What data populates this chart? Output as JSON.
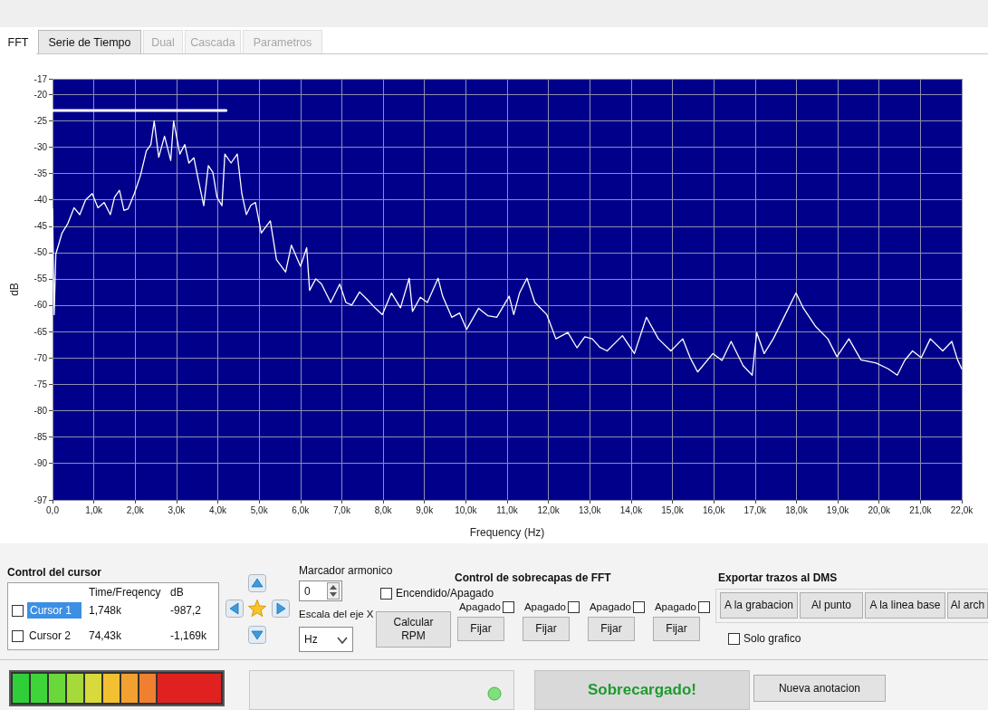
{
  "chart_data": [
    {
      "type": "other",
      "annotations": [
        "FFT",
        "Serie de Tiempo",
        "Dual",
        "Cascada",
        "Parametros"
      ]
    },
    {
      "type": "line",
      "xlabel": "Frequency (Hz)",
      "ylabel": "dB",
      "xlim": [
        0,
        22000
      ],
      "ylim": [
        -97,
        -17
      ],
      "xticks": [
        {
          "value": 0,
          "label": "0,0"
        },
        {
          "value": 1000,
          "label": "1,0k"
        },
        {
          "value": 2000,
          "label": "2,0k"
        },
        {
          "value": 3000,
          "label": "3,0k"
        },
        {
          "value": 4000,
          "label": "4,0k"
        },
        {
          "value": 5000,
          "label": "5,0k"
        },
        {
          "value": 6000,
          "label": "6,0k"
        },
        {
          "value": 7000,
          "label": "7,0k"
        },
        {
          "value": 8000,
          "label": "8,0k"
        },
        {
          "value": 9000,
          "label": "9,0k"
        },
        {
          "value": 10000,
          "label": "10,0k"
        },
        {
          "value": 11000,
          "label": "11,0k"
        },
        {
          "value": 12000,
          "label": "12,0k"
        },
        {
          "value": 13000,
          "label": "13,0k"
        },
        {
          "value": 14000,
          "label": "14,0k"
        },
        {
          "value": 15000,
          "label": "15,0k"
        },
        {
          "value": 16000,
          "label": "16,0k"
        },
        {
          "value": 17000,
          "label": "17,0k"
        },
        {
          "value": 18000,
          "label": "18,0k"
        },
        {
          "value": 19000,
          "label": "19,0k"
        },
        {
          "value": 20000,
          "label": "20,0k"
        },
        {
          "value": 21000,
          "label": "21,0k"
        },
        {
          "value": 22000,
          "label": "22,0k"
        }
      ],
      "yticks": [
        -17,
        -20,
        -25,
        -30,
        -35,
        -40,
        -45,
        -50,
        -55,
        -60,
        -65,
        -70,
        -75,
        -80,
        -85,
        -90,
        -97
      ],
      "grid": true,
      "series": [
        {
          "color": "#ffffff",
          "x": [
            0,
            40,
            80,
            230,
            370,
            520,
            660,
            800,
            960,
            1100,
            1250,
            1400,
            1500,
            1620,
            1730,
            1830,
            1980,
            2130,
            2270,
            2380,
            2460,
            2570,
            2710,
            2860,
            2930,
            3080,
            3200,
            3300,
            3420,
            3520,
            3660,
            3770,
            3880,
            3980,
            4100,
            4170,
            4320,
            4470,
            4580,
            4690,
            4800,
            4910,
            5050,
            5270,
            5420,
            5640,
            5780,
            6000,
            6150,
            6220,
            6370,
            6510,
            6730,
            6950,
            7100,
            7240,
            7430,
            7610,
            7800,
            7980,
            8200,
            8420,
            8630,
            8710,
            8900,
            9070,
            9330,
            9440,
            9660,
            9850,
            10020,
            10310,
            10530,
            10750,
            11050,
            11160,
            11300,
            11480,
            11670,
            11960,
            12180,
            12470,
            12690,
            12880,
            13060,
            13240,
            13420,
            13790,
            14080,
            14370,
            14660,
            14960,
            15250,
            15430,
            15610,
            15980,
            16200,
            16420,
            16710,
            16930,
            17040,
            17220,
            17440,
            17730,
            17990,
            18170,
            18470,
            18760,
            18980,
            19270,
            19560,
            19930,
            20220,
            20440,
            20620,
            20810,
            21020,
            21240,
            21540,
            21760,
            21900,
            22000
          ],
          "values": [
            -41.7,
            -61.8,
            -50.3,
            -46.3,
            -44.5,
            -41.5,
            -42.8,
            -40,
            -38.8,
            -41.5,
            -40.5,
            -42.8,
            -39.5,
            -38.2,
            -42,
            -41.7,
            -38.8,
            -35.3,
            -30.7,
            -29.5,
            -25,
            -31.9,
            -27.9,
            -32.5,
            -25,
            -31.3,
            -29.5,
            -33,
            -32,
            -35.9,
            -41.1,
            -33.5,
            -34.8,
            -39.5,
            -41.1,
            -31.3,
            -33,
            -31.3,
            -38.8,
            -42.8,
            -41,
            -40.5,
            -46.3,
            -44,
            -51.4,
            -53.7,
            -48.6,
            -52.6,
            -49.1,
            -57.2,
            -55,
            -56,
            -59.5,
            -56,
            -59.5,
            -60,
            -57.5,
            -58.9,
            -60.5,
            -61.8,
            -57.7,
            -60.5,
            -54.9,
            -61.2,
            -58.5,
            -59.5,
            -54.9,
            -58.3,
            -62.3,
            -61.5,
            -64.6,
            -60.6,
            -62,
            -62.3,
            -58.3,
            -61.8,
            -57.7,
            -54.9,
            -59.5,
            -61.8,
            -66.4,
            -65.2,
            -68.1,
            -66,
            -66.4,
            -68,
            -68.7,
            -65.8,
            -69.2,
            -62.3,
            -66.4,
            -68.7,
            -66.4,
            -70,
            -72.7,
            -69.2,
            -70.5,
            -66.9,
            -71.5,
            -73.3,
            -65.2,
            -69.2,
            -66.4,
            -61.8,
            -57.7,
            -60.6,
            -64.1,
            -66.4,
            -69.8,
            -66.4,
            -70.4,
            -71,
            -72.1,
            -73.3,
            -70.5,
            -68.7,
            -70,
            -66.4,
            -68.7,
            -66.9,
            -70.4,
            -72.1
          ]
        },
        {
          "color": "#ffffff",
          "x": [
            0,
            4200
          ],
          "values": [
            -23,
            -23
          ]
        }
      ]
    },
    {
      "type": "other",
      "annotations": [
        "Control del cursor",
        "Time/Freqency",
        "dB",
        "Cursor 1",
        "1,748k",
        "-987,2",
        "Cursor 2",
        "74,43k",
        "-1,169k",
        "Marcador armonico",
        "0",
        "Escala del eje X",
        "Hz",
        "Encendido/Apagado",
        "Calcular RPM",
        "Control de sobrecapas de FFT",
        "Apagado",
        "Apagado",
        "Apagado",
        "Apagado",
        "Fijar",
        "Fijar",
        "Fijar",
        "Fijar",
        "Exportar trazos al DMS",
        "A la grabacion",
        "Al punto",
        "A la linea base",
        "Al arch",
        "Solo grafico",
        "Sobrecargado!",
        "Nueva anotacion"
      ]
    }
  ]
}
